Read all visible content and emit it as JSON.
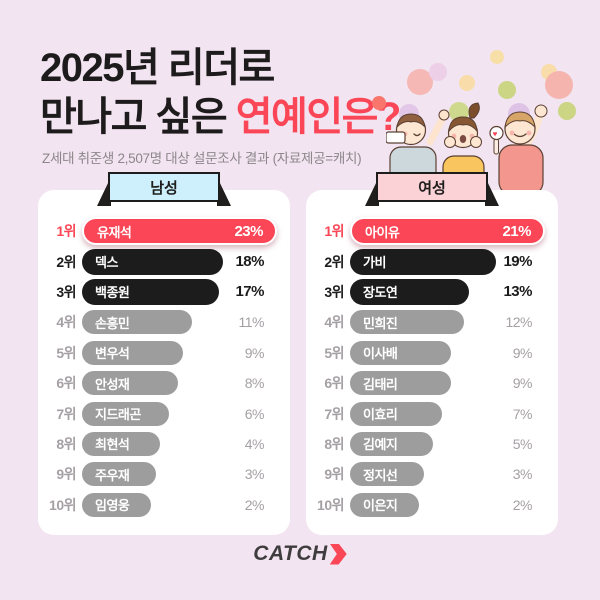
{
  "title": {
    "line1": "2025년 리더로",
    "line2_prefix": "만나고 싶은 ",
    "line2_highlight": "연예인은?"
  },
  "subtitle": "Z세대 취준생 2,507명 대상 설문조사 결과 (자료제공=캐치)",
  "logo": {
    "text": "CATCH",
    "arrow_icon": "chevron-right-arrow"
  },
  "colors": {
    "background": "#F2E4F0",
    "panel": "#FFFFFF",
    "accent_red": "#FA4656",
    "bar_black": "#1C1C1C",
    "bar_gray": "#9D9D9D",
    "muted_text": "#A5A0A4",
    "male_sign_bg": "#CEEFFC",
    "female_sign_bg": "#FBD2D6"
  },
  "chart_data": [
    {
      "type": "bar",
      "group": "남성",
      "unit": "%",
      "entries": [
        {
          "rank": "1위",
          "name": "유재석",
          "percent": 23
        },
        {
          "rank": "2위",
          "name": "덱스",
          "percent": 18
        },
        {
          "rank": "3위",
          "name": "백종원",
          "percent": 17
        },
        {
          "rank": "4위",
          "name": "손흥민",
          "percent": 11
        },
        {
          "rank": "5위",
          "name": "변우석",
          "percent": 9
        },
        {
          "rank": "6위",
          "name": "안성재",
          "percent": 8
        },
        {
          "rank": "7위",
          "name": "지드래곤",
          "percent": 6
        },
        {
          "rank": "8위",
          "name": "최현석",
          "percent": 4
        },
        {
          "rank": "9위",
          "name": "주우재",
          "percent": 3
        },
        {
          "rank": "10위",
          "name": "임영웅",
          "percent": 2
        }
      ]
    },
    {
      "type": "bar",
      "group": "여성",
      "unit": "%",
      "entries": [
        {
          "rank": "1위",
          "name": "아이유",
          "percent": 21
        },
        {
          "rank": "2위",
          "name": "가비",
          "percent": 19
        },
        {
          "rank": "3위",
          "name": "장도연",
          "percent": 13
        },
        {
          "rank": "4위",
          "name": "민희진",
          "percent": 12
        },
        {
          "rank": "5위",
          "name": "이사배",
          "percent": 9
        },
        {
          "rank": "6위",
          "name": "김태리",
          "percent": 9
        },
        {
          "rank": "7위",
          "name": "이효리",
          "percent": 7
        },
        {
          "rank": "8위",
          "name": "김예지",
          "percent": 5
        },
        {
          "rank": "9위",
          "name": "정지선",
          "percent": 3
        },
        {
          "rank": "10위",
          "name": "이은지",
          "percent": 2
        }
      ]
    }
  ]
}
